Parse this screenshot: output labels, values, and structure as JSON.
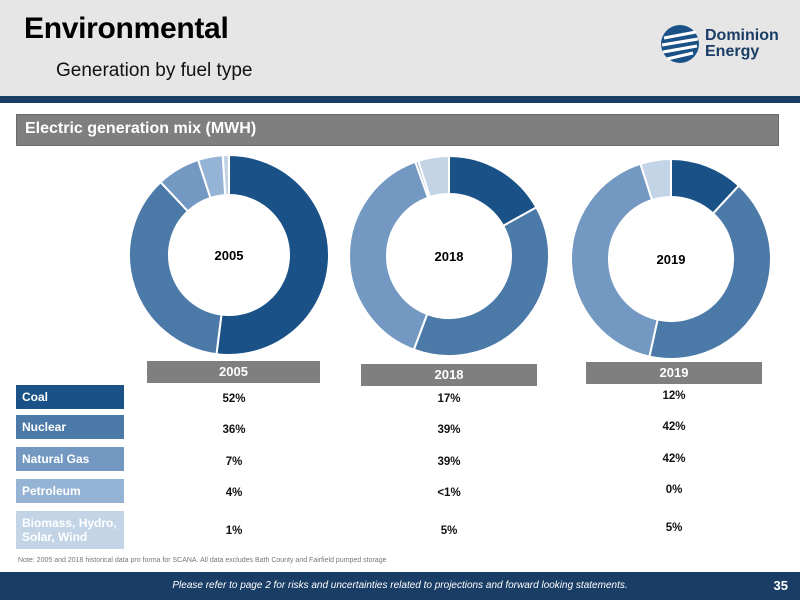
{
  "header": {
    "title": "Environmental",
    "subtitle": "Generation by fuel type",
    "logo_line1": "Dominion",
    "logo_line2": "Energy"
  },
  "section": {
    "title": "Electric generation mix (MWH)"
  },
  "chart_data": {
    "type": "pie",
    "variant": "donut",
    "categories": [
      "Coal",
      "Nuclear",
      "Natural Gas",
      "Petroleum",
      "Biomass, Hydro, Solar, Wind"
    ],
    "colors": [
      "#1a5287",
      "#4c7aa8",
      "#7398c2",
      "#95b3d4",
      "#c2d4e5"
    ],
    "charts": [
      {
        "year": "2005",
        "values": [
          52,
          36,
          7,
          4,
          1
        ]
      },
      {
        "year": "2018",
        "values": [
          17,
          39,
          39,
          0.5,
          5
        ]
      },
      {
        "year": "2019",
        "values": [
          12,
          42,
          42,
          0,
          5
        ]
      }
    ]
  },
  "table": {
    "years": [
      "2005",
      "2018",
      "2019"
    ],
    "rows": [
      {
        "label": "Coal",
        "values": [
          "52%",
          "17%",
          "12%"
        ]
      },
      {
        "label": "Nuclear",
        "values": [
          "36%",
          "39%",
          "42%"
        ]
      },
      {
        "label": "Natural Gas",
        "values": [
          "7%",
          "39%",
          "42%"
        ]
      },
      {
        "label": "Petroleum",
        "values": [
          "4%",
          "<1%",
          "0%"
        ]
      },
      {
        "label": "Biomass, Hydro, Solar, Wind",
        "values": [
          "1%",
          "5%",
          "5%"
        ]
      }
    ]
  },
  "note": "Note: 2005 and 2018 historical data pro forma for SCANA. All data excludes Bath County and Fairfield pumped storage",
  "footer": {
    "text": "Please refer to page 2 for risks and uncertainties related to projections and forward looking statements.",
    "page_number": "35"
  }
}
